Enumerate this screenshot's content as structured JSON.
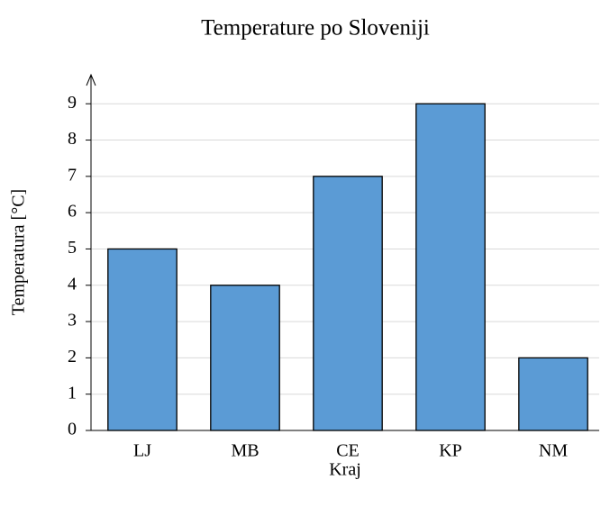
{
  "chart_data": {
    "type": "bar",
    "title": "Temperature po Sloveniji",
    "x_label": "Kraj",
    "y_label": "Temperatura [°C]",
    "categories": [
      "LJ",
      "MB",
      "CE",
      "KP",
      "NM"
    ],
    "values": [
      5,
      4,
      7,
      9,
      2
    ],
    "color": "#5b9bd5",
    "ylim": [
      0,
      9.7
    ],
    "yticks": [
      0,
      1,
      2,
      3,
      4,
      5,
      6,
      7,
      8,
      9
    ],
    "grid": true
  }
}
